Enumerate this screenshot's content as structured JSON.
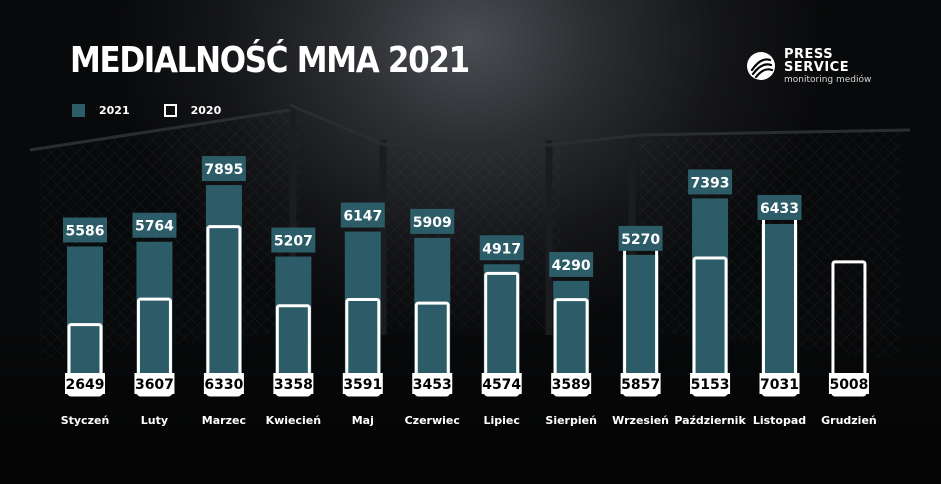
{
  "title": "MEDIALNOŚĆ MMA 2021",
  "logo": {
    "line1": "PRESS",
    "line2": "SERVICE",
    "line3": "monitoring mediów"
  },
  "legend": {
    "s2021": "2021",
    "s2020": "2020"
  },
  "colors": {
    "bar_2021": "#2c5c67",
    "bar_2020_outline": "#ffffff",
    "label_box_2021": "#2c5c67",
    "label_box_2020": "#ffffff",
    "label_text_2020": "#000000",
    "label_text_2021": "#ffffff"
  },
  "chart_data": {
    "type": "bar",
    "categories": [
      "Styczeń",
      "Luty",
      "Marzec",
      "Kwiecień",
      "Maj",
      "Czerwiec",
      "Lipiec",
      "Sierpień",
      "Wrzesień",
      "Październik",
      "Listopad",
      "Grudzień"
    ],
    "series": [
      {
        "name": "2021",
        "values": [
          5586,
          5764,
          7895,
          5207,
          6147,
          5909,
          4917,
          4290,
          5270,
          7393,
          6433,
          null
        ]
      },
      {
        "name": "2020",
        "values": [
          2649,
          3607,
          6330,
          3358,
          3591,
          3453,
          4574,
          3589,
          5857,
          5153,
          7031,
          5008
        ]
      }
    ],
    "ylim": [
      0,
      8000
    ],
    "legend_position": "top-left",
    "grid": false
  }
}
